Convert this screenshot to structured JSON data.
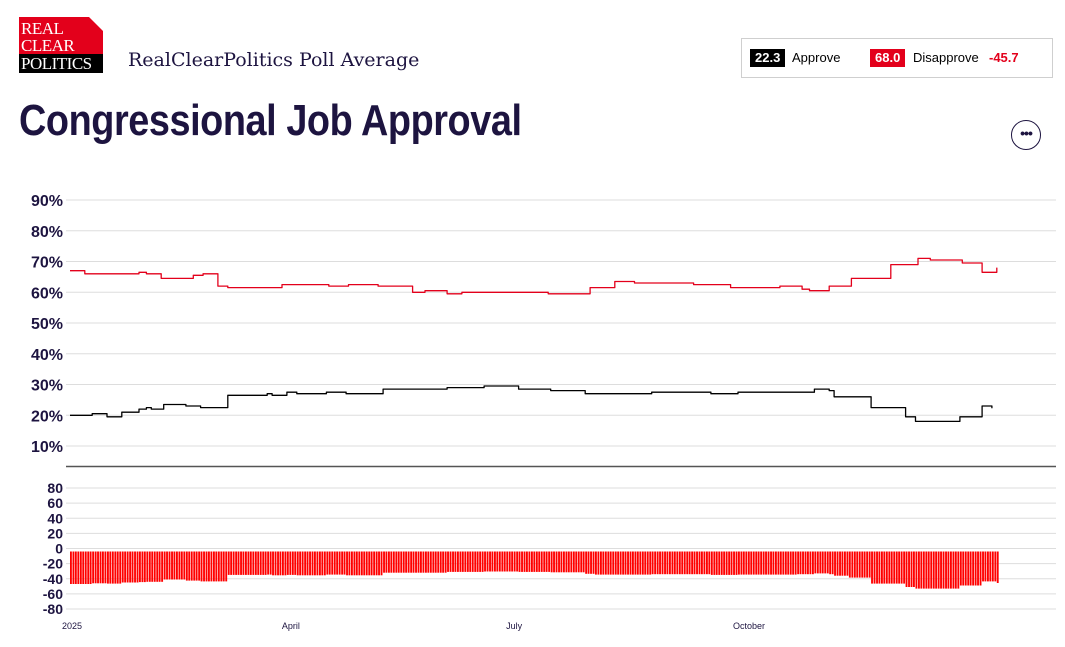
{
  "logo": {
    "line1": "REAL",
    "line2": "CLEAR",
    "line3": "POLITICS"
  },
  "header": {
    "subtitle": "RealClearPolitics Poll Average",
    "title": "Congressional Job Approval"
  },
  "summary": {
    "approve_value": "22.3",
    "approve_label": "Approve",
    "disapprove_value": "68.0",
    "disapprove_label": "Disapprove",
    "spread": "-45.7"
  },
  "more_button": {
    "label": "•••"
  },
  "colors": {
    "approve": "#000000",
    "disapprove": "#e3001b",
    "spread_bar": "#ff0000"
  },
  "chart_data": {
    "type": "line",
    "title": "Congressional Job Approval",
    "ylim": [
      5,
      95
    ],
    "y_ticks": [
      "10%",
      "20%",
      "30%",
      "40%",
      "50%",
      "60%",
      "70%",
      "80%",
      "90%"
    ],
    "x_ticks": [
      "2025",
      "April",
      "July",
      "October"
    ],
    "x_tick_positions": [
      0,
      90,
      181,
      273
    ],
    "x_range": [
      0,
      400
    ],
    "series": [
      {
        "name": "Approve",
        "color": "#000000",
        "x": [
          0,
          9,
          15,
          21,
          28,
          31,
          33,
          38,
          47,
          53,
          64,
          80,
          82,
          88,
          92,
          104,
          112,
          127,
          153,
          168,
          182,
          195,
          209,
          213,
          236,
          260,
          271,
          295,
          302,
          308,
          310,
          316,
          325,
          339,
          343,
          361,
          370,
          374
        ],
        "values": [
          20.0,
          20.5,
          19.5,
          21.0,
          22.0,
          22.5,
          22.0,
          23.5,
          23.0,
          22.5,
          26.5,
          27.0,
          26.5,
          27.5,
          27.0,
          27.5,
          27.0,
          28.5,
          29.0,
          29.5,
          28.5,
          28.0,
          27.0,
          27.0,
          27.5,
          27.0,
          27.5,
          27.5,
          28.5,
          28.0,
          26.0,
          26.0,
          22.5,
          19.5,
          18.0,
          19.5,
          23.0,
          22.3
        ]
      },
      {
        "name": "Disapprove",
        "color": "#e3001b",
        "x": [
          0,
          6,
          9,
          28,
          31,
          37,
          43,
          50,
          54,
          60,
          64,
          80,
          86,
          105,
          113,
          125,
          139,
          144,
          153,
          159,
          170,
          180,
          194,
          211,
          221,
          229,
          253,
          268,
          280,
          288,
          297,
          300,
          308,
          317,
          333,
          344,
          349,
          362,
          370,
          376
        ],
        "values": [
          67.0,
          66.0,
          66.0,
          66.5,
          66.0,
          64.5,
          64.5,
          65.5,
          66.0,
          62.0,
          61.5,
          61.5,
          62.5,
          62.0,
          62.5,
          62.0,
          60.0,
          60.5,
          59.5,
          60.0,
          60.0,
          60.0,
          59.5,
          61.5,
          63.5,
          63.0,
          62.5,
          61.5,
          61.5,
          62.0,
          61.0,
          60.5,
          62.0,
          64.5,
          69.0,
          71.0,
          70.5,
          69.5,
          66.5,
          68.0
        ]
      },
      {
        "name": "Spread",
        "color": "#ff0000",
        "x": [
          0,
          9,
          15,
          21,
          28,
          31,
          33,
          38,
          47,
          53,
          64,
          80,
          82,
          88,
          92,
          104,
          112,
          127,
          153,
          168,
          182,
          195,
          209,
          213,
          236,
          260,
          271,
          295,
          302,
          308,
          310,
          316,
          325,
          339,
          343,
          361,
          370,
          376
        ],
        "values": [
          -47.0,
          -46.0,
          -46.5,
          -45.0,
          -44.5,
          -44.0,
          -44.0,
          -41.0,
          -42.5,
          -43.5,
          -35.0,
          -34.5,
          -35.5,
          -35.0,
          -35.5,
          -34.5,
          -35.5,
          -32.0,
          -31.0,
          -30.5,
          -31.0,
          -31.5,
          -33.5,
          -34.5,
          -34.0,
          -35.0,
          -34.5,
          -34.0,
          -33.0,
          -34.0,
          -36.0,
          -38.5,
          -46.5,
          -51.0,
          -53.0,
          -49.0,
          -43.5,
          -45.7
        ]
      }
    ],
    "spread_panel": {
      "ylim": [
        -90,
        90
      ],
      "y_ticks": [
        "-80",
        "-60",
        "-40",
        "-20",
        "0",
        "20",
        "40",
        "60",
        "80"
      ]
    }
  }
}
